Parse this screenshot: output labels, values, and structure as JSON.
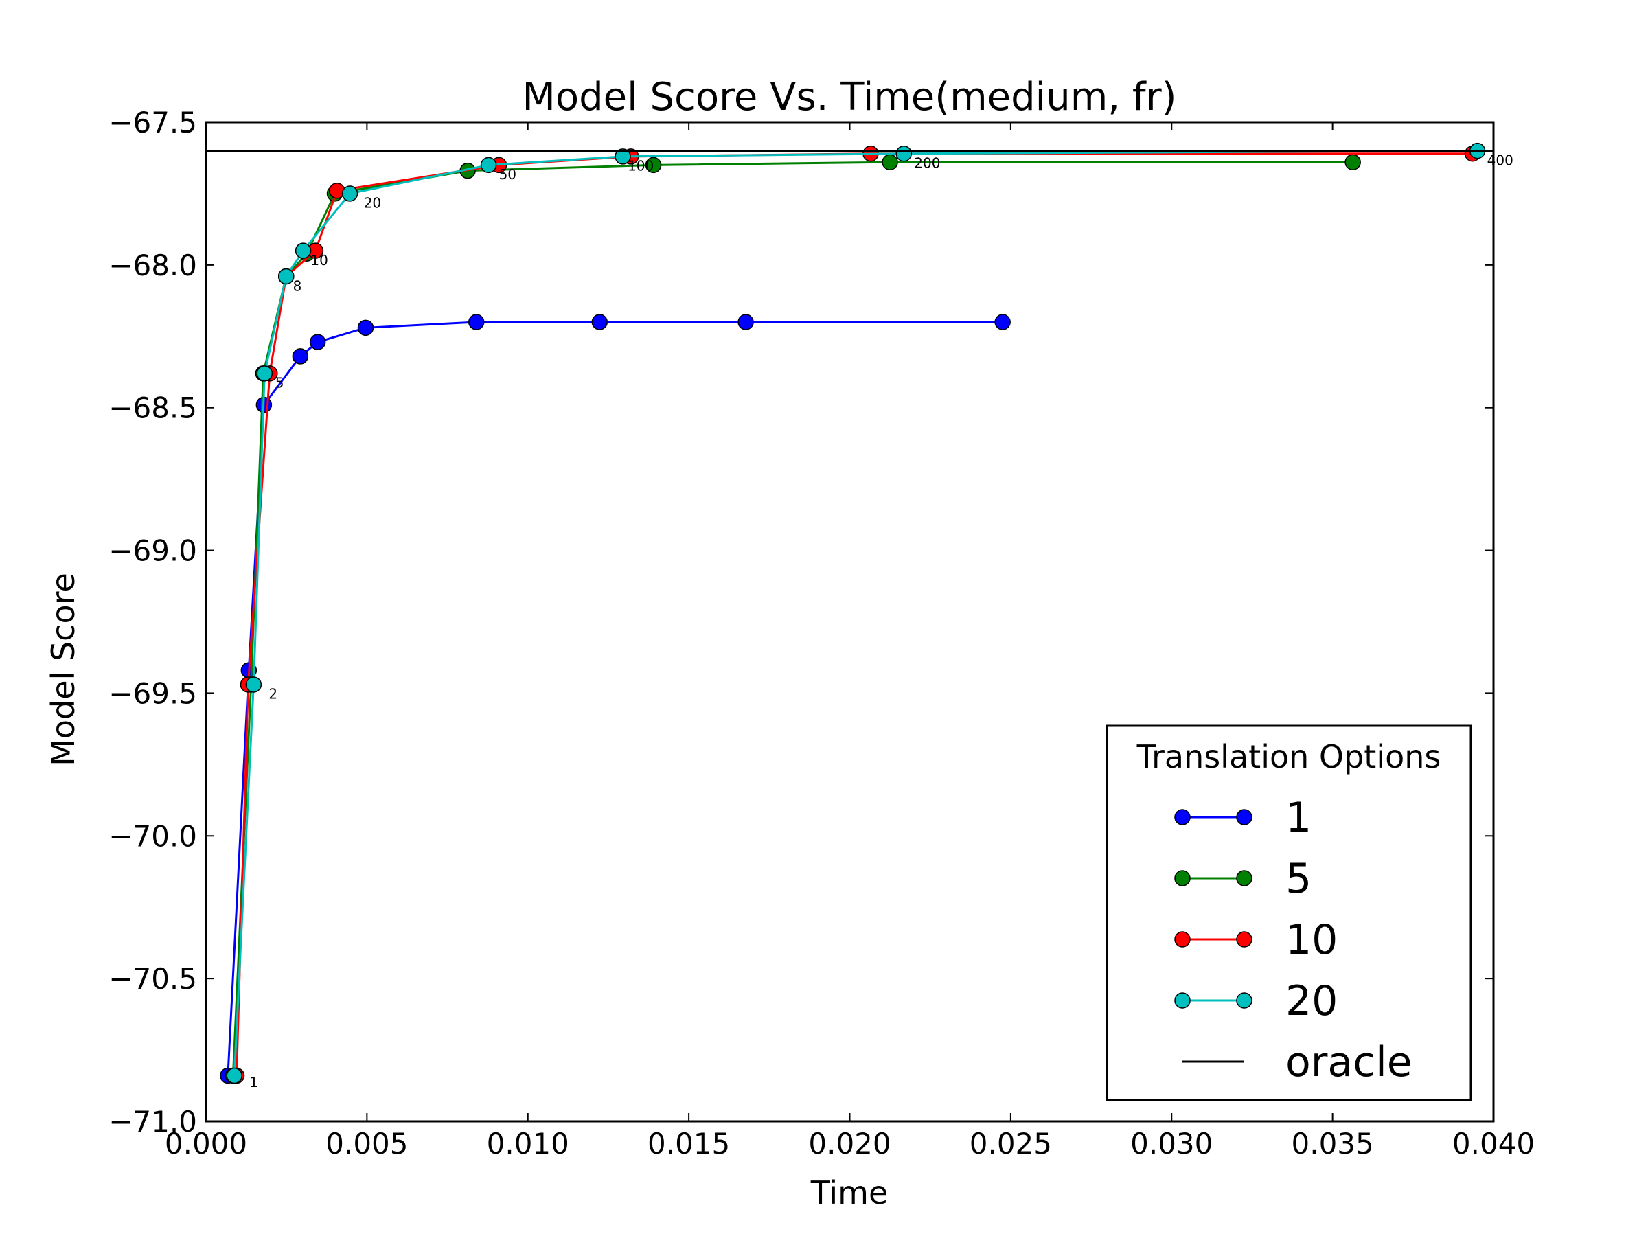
{
  "chart_data": {
    "type": "line",
    "title": "Model Score Vs. Time(medium, fr)",
    "xlabel": "Time",
    "ylabel": "Model Score",
    "xlim": [
      0.0,
      0.04
    ],
    "ylim": [
      -71.0,
      -67.5
    ],
    "xticks": [
      "0.000",
      "0.005",
      "0.010",
      "0.015",
      "0.020",
      "0.025",
      "0.030",
      "0.035",
      "0.040"
    ],
    "yticks": [
      "−67.5",
      "−68.0",
      "−68.5",
      "−69.0",
      "−69.5",
      "−70.0",
      "−70.5",
      "−71.0"
    ],
    "grid": false,
    "legend": {
      "title": "Translation Options",
      "position": "lower-right"
    },
    "series": [
      {
        "name": "1",
        "color": "#0000ff",
        "x": [
          0.00068,
          0.00133,
          0.0018,
          0.00293,
          0.00347,
          0.00496,
          0.0084,
          0.01223,
          0.01677,
          0.02475
        ],
        "y": [
          -70.84,
          -69.42,
          -68.49,
          -68.32,
          -68.27,
          -68.22,
          -68.2,
          -68.2,
          -68.2,
          -68.2
        ]
      },
      {
        "name": "5",
        "color": "#008000",
        "x": [
          0.00084,
          0.0014,
          0.00178,
          0.00249,
          0.00313,
          0.004,
          0.00813,
          0.0139,
          0.02125,
          0.03563
        ],
        "y": [
          -70.84,
          -69.47,
          -68.38,
          -68.04,
          -67.96,
          -67.75,
          -67.67,
          -67.65,
          -67.64,
          -67.64
        ]
      },
      {
        "name": "10",
        "color": "#ff0000",
        "x": [
          0.00095,
          0.00131,
          0.00198,
          0.00249,
          0.0034,
          0.00407,
          0.0091,
          0.0132,
          0.02065,
          0.03935
        ],
        "y": [
          -70.84,
          -69.47,
          -68.38,
          -68.04,
          -67.95,
          -67.74,
          -67.65,
          -67.62,
          -67.61,
          -67.61
        ]
      },
      {
        "name": "20",
        "color": "#00bfbf",
        "x": [
          0.00088,
          0.00148,
          0.00182,
          0.00249,
          0.00302,
          0.00447,
          0.00878,
          0.01295,
          0.02168,
          0.0395
        ],
        "y": [
          -70.84,
          -69.47,
          -68.38,
          -68.04,
          -67.95,
          -67.75,
          -67.65,
          -67.62,
          -67.61,
          -67.6
        ]
      },
      {
        "name": "oracle",
        "color": "#000000",
        "x": [
          0.0,
          0.04
        ],
        "y": [
          -67.6,
          -67.6
        ]
      }
    ],
    "annotations": [
      {
        "text": "1",
        "x": 0.00135,
        "y": -70.88
      },
      {
        "text": "2",
        "x": 0.00195,
        "y": -69.52
      },
      {
        "text": "5",
        "x": 0.00215,
        "y": -68.43
      },
      {
        "text": "8",
        "x": 0.0027,
        "y": -68.09
      },
      {
        "text": "10",
        "x": 0.00325,
        "y": -68.0
      },
      {
        "text": "20",
        "x": 0.0049,
        "y": -67.8
      },
      {
        "text": "50",
        "x": 0.0091,
        "y": -67.7
      },
      {
        "text": "100",
        "x": 0.0131,
        "y": -67.67
      },
      {
        "text": "200",
        "x": 0.022,
        "y": -67.66
      },
      {
        "text": "400",
        "x": 0.0398,
        "y": -67.65
      }
    ]
  }
}
